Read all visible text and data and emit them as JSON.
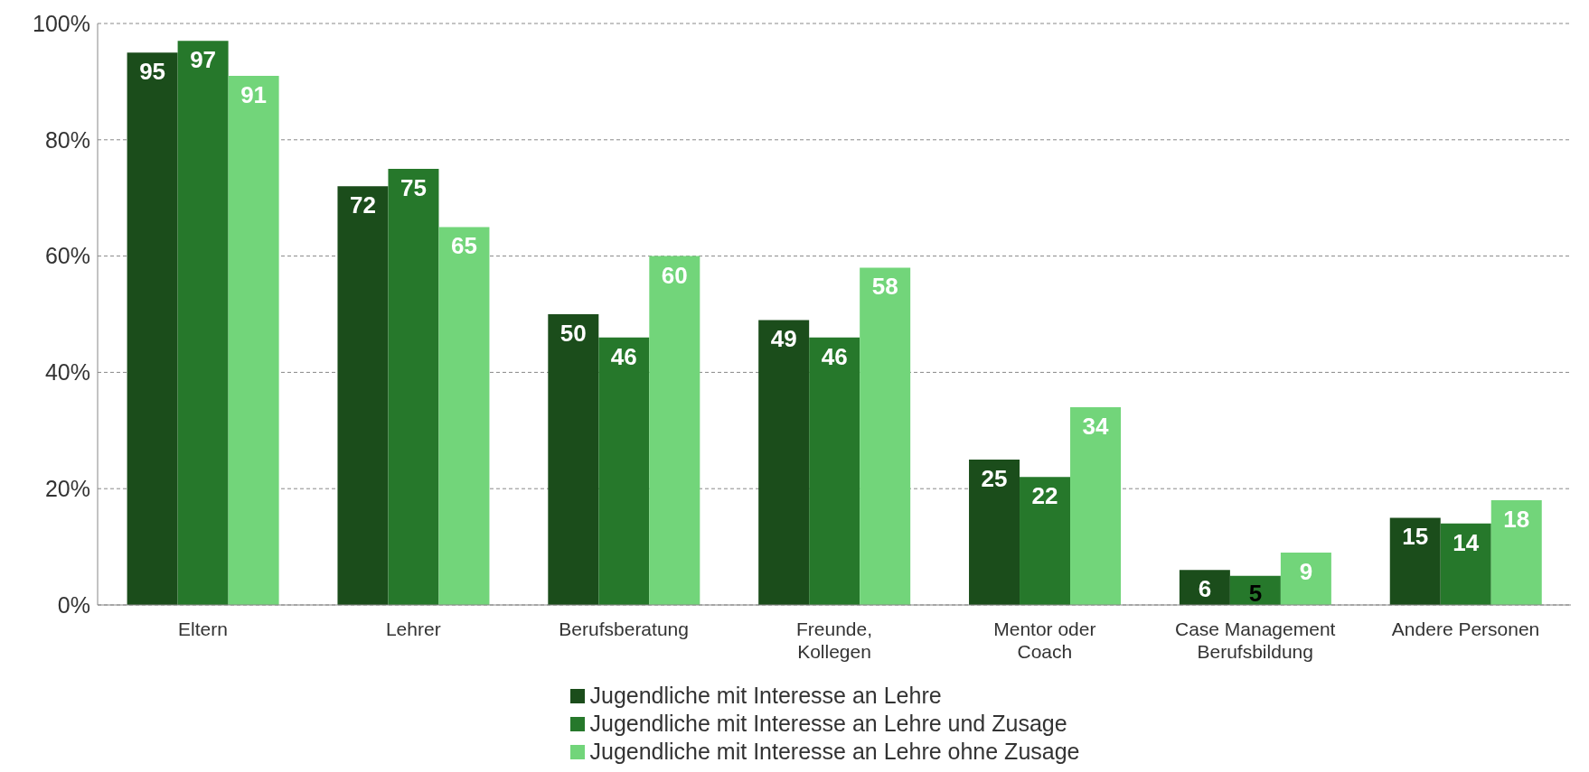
{
  "chart_data": {
    "type": "bar",
    "categories": [
      "Eltern",
      "Lehrer",
      "Berufsberatung",
      "Freunde,\nKollegen",
      "Mentor oder\nCoach",
      "Case Management\nBerufsbildung",
      "Andere Personen"
    ],
    "series": [
      {
        "name": "Jugendliche mit Interesse an Lehre",
        "color": "#1b4d1b",
        "values": [
          95,
          72,
          50,
          49,
          25,
          6,
          15
        ]
      },
      {
        "name": "Jugendliche mit Interesse an Lehre und Zusage",
        "color": "#26782b",
        "values": [
          97,
          75,
          46,
          46,
          22,
          5,
          14
        ]
      },
      {
        "name": "Jugendliche mit Interesse an Lehre ohne Zusage",
        "color": "#72d57a",
        "values": [
          91,
          65,
          60,
          58,
          34,
          9,
          18
        ]
      }
    ],
    "ylim": [
      0,
      100
    ],
    "yticks": [
      {
        "value": 0,
        "label": "0%"
      },
      {
        "value": 20,
        "label": "20%"
      },
      {
        "value": 40,
        "label": "40%"
      },
      {
        "value": 60,
        "label": "60%"
      },
      {
        "value": 80,
        "label": "80%"
      },
      {
        "value": 100,
        "label": "100%"
      }
    ],
    "grid": "y",
    "legend": "bottom",
    "data_labels": true
  }
}
